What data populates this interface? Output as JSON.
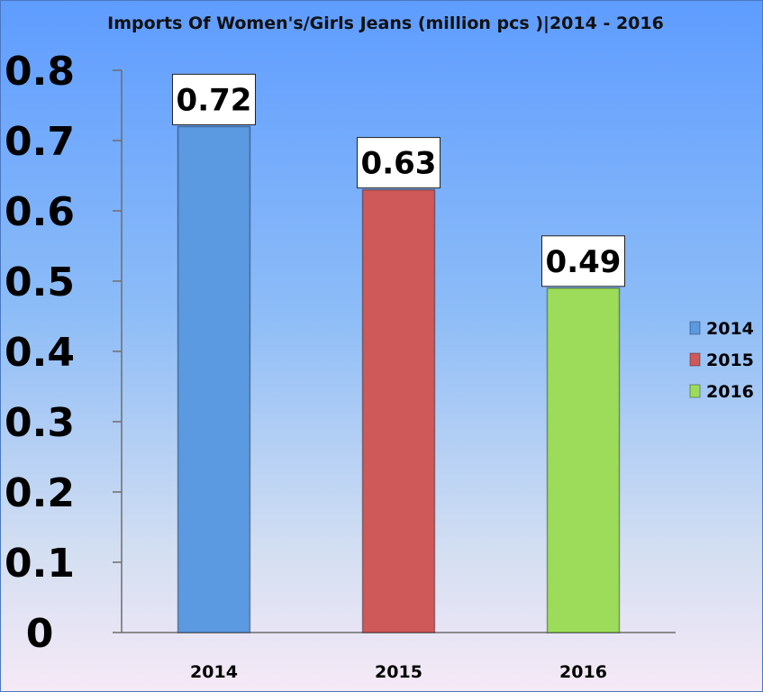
{
  "chart_data": {
    "type": "bar",
    "title": "Imports Of Women's/Girls Jeans (million pcs )|2014 - 2016",
    "categories": [
      "2014",
      "2015",
      "2016"
    ],
    "values": [
      0.72,
      0.63,
      0.49
    ],
    "data_labels": [
      "0.72",
      "0.63",
      "0.49"
    ],
    "ylim": [
      0,
      0.8
    ],
    "yticks": [
      "0",
      "0.1",
      "0.2",
      "0.3",
      "0.4",
      "0.5",
      "0.6",
      "0.7",
      "0.8"
    ],
    "xlabel": "",
    "ylabel": "",
    "grid": false,
    "legend_position": "right",
    "legend": [
      "2014",
      "2015",
      "2016"
    ],
    "colors": [
      "#5b99e0",
      "#cf5858",
      "#9cdc5a"
    ]
  }
}
